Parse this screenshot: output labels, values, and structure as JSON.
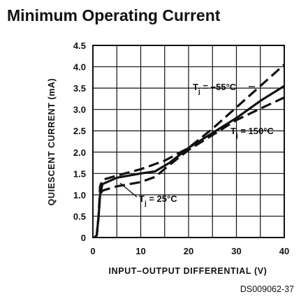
{
  "page": {
    "title": "Minimum Operating Current",
    "document_id": "DS009062-37"
  },
  "chart_data": {
    "type": "line",
    "title": "Minimum Operating Current",
    "xlabel": "INPUT–OUTPUT DIFFERENTIAL (V)",
    "ylabel": "QUIESCENT CURRENT (mA)",
    "xlim": [
      0,
      40
    ],
    "ylim": [
      0,
      4.5
    ],
    "x_ticks": [
      0,
      10,
      20,
      30,
      40
    ],
    "y_ticks": [
      0,
      0.5,
      1.0,
      1.5,
      2.0,
      2.5,
      3.0,
      3.5,
      4.0,
      4.5
    ],
    "x_tick_labels": [
      "0",
      "10",
      "20",
      "30",
      "40"
    ],
    "y_tick_labels": [
      "0",
      "0.5",
      "1.0",
      "1.5",
      "2.0",
      "2.5",
      "3.0",
      "3.5",
      "4.0",
      "4.5"
    ],
    "grid": true,
    "series": [
      {
        "name": "Tj = −55°C",
        "style": "dashed",
        "x": [
          0.3,
          0.8,
          1.2,
          1.5,
          2.0,
          5,
          10,
          15,
          20,
          25,
          30,
          35,
          40
        ],
        "y": [
          0,
          0.05,
          0.5,
          1.2,
          1.35,
          1.45,
          1.6,
          1.8,
          2.1,
          2.55,
          3.05,
          3.55,
          4.05
        ]
      },
      {
        "name": "Tj = 25°C",
        "style": "solid",
        "x": [
          0.3,
          0.8,
          1.2,
          1.5,
          2.0,
          5,
          10,
          13,
          16,
          20,
          25,
          30,
          35,
          40
        ],
        "y": [
          0,
          0.05,
          0.5,
          1.0,
          1.25,
          1.4,
          1.5,
          1.55,
          1.75,
          2.1,
          2.45,
          2.8,
          3.2,
          3.55
        ]
      },
      {
        "name": "Tj = 150°C",
        "style": "dashed",
        "x": [
          0.3,
          0.8,
          1.2,
          1.5,
          2.0,
          5,
          10,
          13,
          16,
          20,
          25,
          30,
          35,
          40
        ],
        "y": [
          0,
          0.05,
          0.5,
          1.0,
          1.1,
          1.2,
          1.3,
          1.42,
          1.7,
          2.05,
          2.4,
          2.75,
          3.02,
          3.28
        ]
      }
    ],
    "annotations": [
      {
        "prefix": "T",
        "subscript": "j",
        "value": " = −55°C",
        "series": "Tj = −55°C"
      },
      {
        "prefix": "T",
        "subscript": "j",
        "value": " = 25°C",
        "series": "Tj = 25°C"
      },
      {
        "prefix": "T",
        "subscript": "j",
        "value": " = 150°C",
        "series": "Tj = 150°C"
      }
    ]
  }
}
